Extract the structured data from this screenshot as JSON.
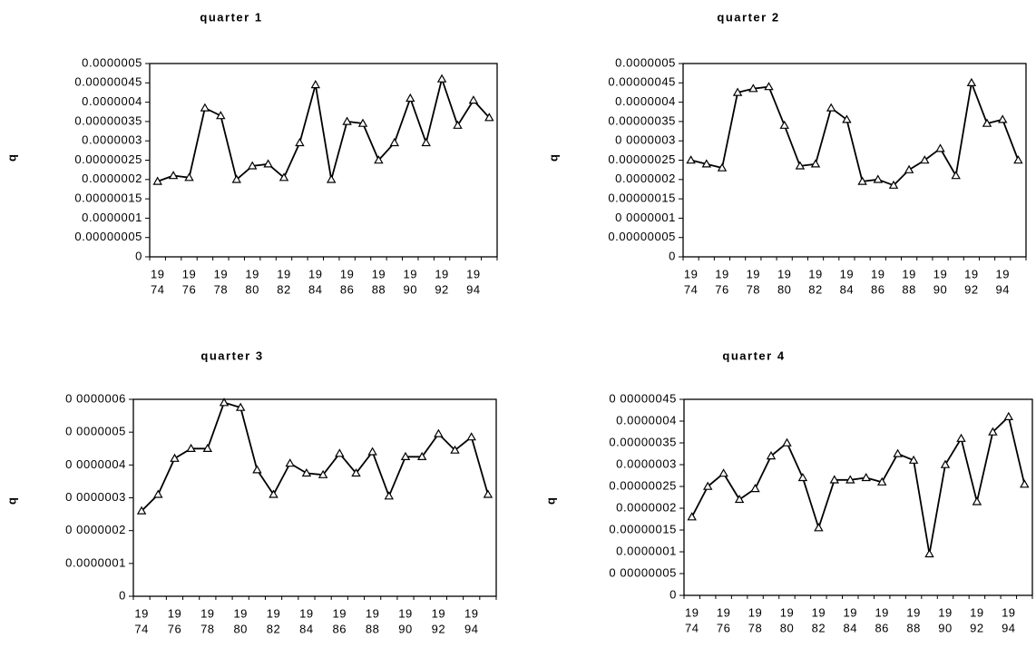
{
  "chart_data": [
    {
      "type": "line",
      "title": "quarter 1",
      "ylabel": "q",
      "xlabel": "",
      "ylim": [
        0,
        5e-07
      ],
      "yticks": [
        "0.0000005",
        "0.00000045",
        "0.0000004",
        "0.00000035",
        "0.0000003",
        "0.00000025",
        "0.0000002",
        "0.00000015",
        "0.0000001",
        "0.00000005",
        "0"
      ],
      "x_tick_labels": [
        [
          "19",
          "74"
        ],
        [
          "19",
          "76"
        ],
        [
          "19",
          "78"
        ],
        [
          "19",
          "80"
        ],
        [
          "19",
          "82"
        ],
        [
          "19",
          "84"
        ],
        [
          "19",
          "86"
        ],
        [
          "19",
          "88"
        ],
        [
          "19",
          "90"
        ],
        [
          "19",
          "92"
        ],
        [
          "19",
          "94"
        ]
      ],
      "x": [
        1974,
        1975,
        1976,
        1977,
        1978,
        1979,
        1980,
        1981,
        1982,
        1983,
        1984,
        1985,
        1986,
        1987,
        1988,
        1989,
        1990,
        1991,
        1992,
        1993,
        1994,
        1995
      ],
      "series": [
        {
          "values": [
            1.95e-07,
            2.1e-07,
            2.05e-07,
            3.85e-07,
            3.65e-07,
            2e-07,
            2.35e-07,
            2.4e-07,
            2.05e-07,
            2.95e-07,
            4.45e-07,
            2e-07,
            3.5e-07,
            3.45e-07,
            2.5e-07,
            2.95e-07,
            4.1e-07,
            2.95e-07,
            4.6e-07,
            3.4e-07,
            4.05e-07,
            3.6e-07
          ]
        }
      ],
      "grid": false,
      "marker": "triangle"
    },
    {
      "type": "line",
      "title": "quarter 2",
      "ylabel": "q",
      "xlabel": "",
      "ylim": [
        0,
        5e-07
      ],
      "yticks": [
        "0.0000005",
        "0.00000045",
        "0.0000004",
        "0.00000035",
        "0 0000003",
        "0.00000025",
        "0.0000002",
        "0.00000015",
        "0 0000001",
        "0.00000005",
        "0"
      ],
      "x_tick_labels": [
        [
          "19",
          "74"
        ],
        [
          "19",
          "76"
        ],
        [
          "19",
          "78"
        ],
        [
          "19",
          "80"
        ],
        [
          "19",
          "82"
        ],
        [
          "19",
          "84"
        ],
        [
          "19",
          "86"
        ],
        [
          "19",
          "88"
        ],
        [
          "19",
          "90"
        ],
        [
          "19",
          "92"
        ],
        [
          "19",
          "94"
        ]
      ],
      "x": [
        1974,
        1975,
        1976,
        1977,
        1978,
        1979,
        1980,
        1981,
        1982,
        1983,
        1984,
        1985,
        1986,
        1987,
        1988,
        1989,
        1990,
        1991,
        1992,
        1993,
        1994,
        1995
      ],
      "series": [
        {
          "values": [
            2.5e-07,
            2.4e-07,
            2.3e-07,
            4.25e-07,
            4.35e-07,
            4.4e-07,
            3.4e-07,
            2.35e-07,
            2.4e-07,
            3.85e-07,
            3.55e-07,
            1.95e-07,
            2e-07,
            1.85e-07,
            2.25e-07,
            2.5e-07,
            2.8e-07,
            2.1e-07,
            4.5e-07,
            3.45e-07,
            3.55e-07,
            2.5e-07
          ]
        }
      ],
      "grid": false,
      "marker": "triangle"
    },
    {
      "type": "line",
      "title": "quarter 3",
      "ylabel": "q",
      "xlabel": "",
      "ylim": [
        0,
        6e-07
      ],
      "yticks": [
        "0 0000006",
        "0 0000005",
        "0 0000004",
        "0 0000003",
        "0 0000002",
        "0.0000001",
        "0"
      ],
      "x_tick_labels": [
        [
          "19",
          "74"
        ],
        [
          "19",
          "76"
        ],
        [
          "19",
          "78"
        ],
        [
          "19",
          "80"
        ],
        [
          "19",
          "82"
        ],
        [
          "19",
          "84"
        ],
        [
          "19",
          "86"
        ],
        [
          "19",
          "88"
        ],
        [
          "19",
          "90"
        ],
        [
          "19",
          "92"
        ],
        [
          "19",
          "94"
        ]
      ],
      "x": [
        1974,
        1975,
        1976,
        1977,
        1978,
        1979,
        1980,
        1981,
        1982,
        1983,
        1984,
        1985,
        1986,
        1987,
        1988,
        1989,
        1990,
        1991,
        1992,
        1993,
        1994,
        1995
      ],
      "series": [
        {
          "values": [
            2.6e-07,
            3.1e-07,
            4.2e-07,
            4.5e-07,
            4.5e-07,
            5.9e-07,
            5.75e-07,
            3.85e-07,
            3.1e-07,
            4.05e-07,
            3.75e-07,
            3.7e-07,
            4.35e-07,
            3.75e-07,
            4.4e-07,
            3.05e-07,
            4.25e-07,
            4.25e-07,
            4.95e-07,
            4.45e-07,
            4.85e-07,
            3.1e-07
          ]
        }
      ],
      "grid": false,
      "marker": "triangle"
    },
    {
      "type": "line",
      "title": "quarter 4",
      "ylabel": "q",
      "xlabel": "",
      "ylim": [
        0,
        4.5e-07
      ],
      "yticks": [
        "0 00000045",
        "0.0000004",
        "0.00000035",
        "0.0000003",
        "0.00000025",
        "0.0000002",
        "0.00000015",
        "0.0000001",
        "0 00000005",
        "0"
      ],
      "x_tick_labels": [
        [
          "19",
          "74"
        ],
        [
          "19",
          "76"
        ],
        [
          "19",
          "78"
        ],
        [
          "19",
          "80"
        ],
        [
          "19",
          "82"
        ],
        [
          "19",
          "84"
        ],
        [
          "19",
          "86"
        ],
        [
          "19",
          "88"
        ],
        [
          "19",
          "90"
        ],
        [
          "19",
          "92"
        ],
        [
          "19",
          "94"
        ]
      ],
      "x": [
        1974,
        1975,
        1976,
        1977,
        1978,
        1979,
        1980,
        1981,
        1982,
        1983,
        1984,
        1985,
        1986,
        1987,
        1988,
        1989,
        1990,
        1991,
        1992,
        1993,
        1994,
        1995
      ],
      "series": [
        {
          "values": [
            1.8e-07,
            2.5e-07,
            2.8e-07,
            2.2e-07,
            2.45e-07,
            3.2e-07,
            3.5e-07,
            2.7e-07,
            1.55e-07,
            2.65e-07,
            2.65e-07,
            2.7e-07,
            2.6e-07,
            3.25e-07,
            3.1e-07,
            9.5e-08,
            3e-07,
            3.6e-07,
            2.15e-07,
            3.75e-07,
            4.1e-07,
            2.55e-07
          ]
        }
      ],
      "grid": false,
      "marker": "triangle"
    }
  ]
}
